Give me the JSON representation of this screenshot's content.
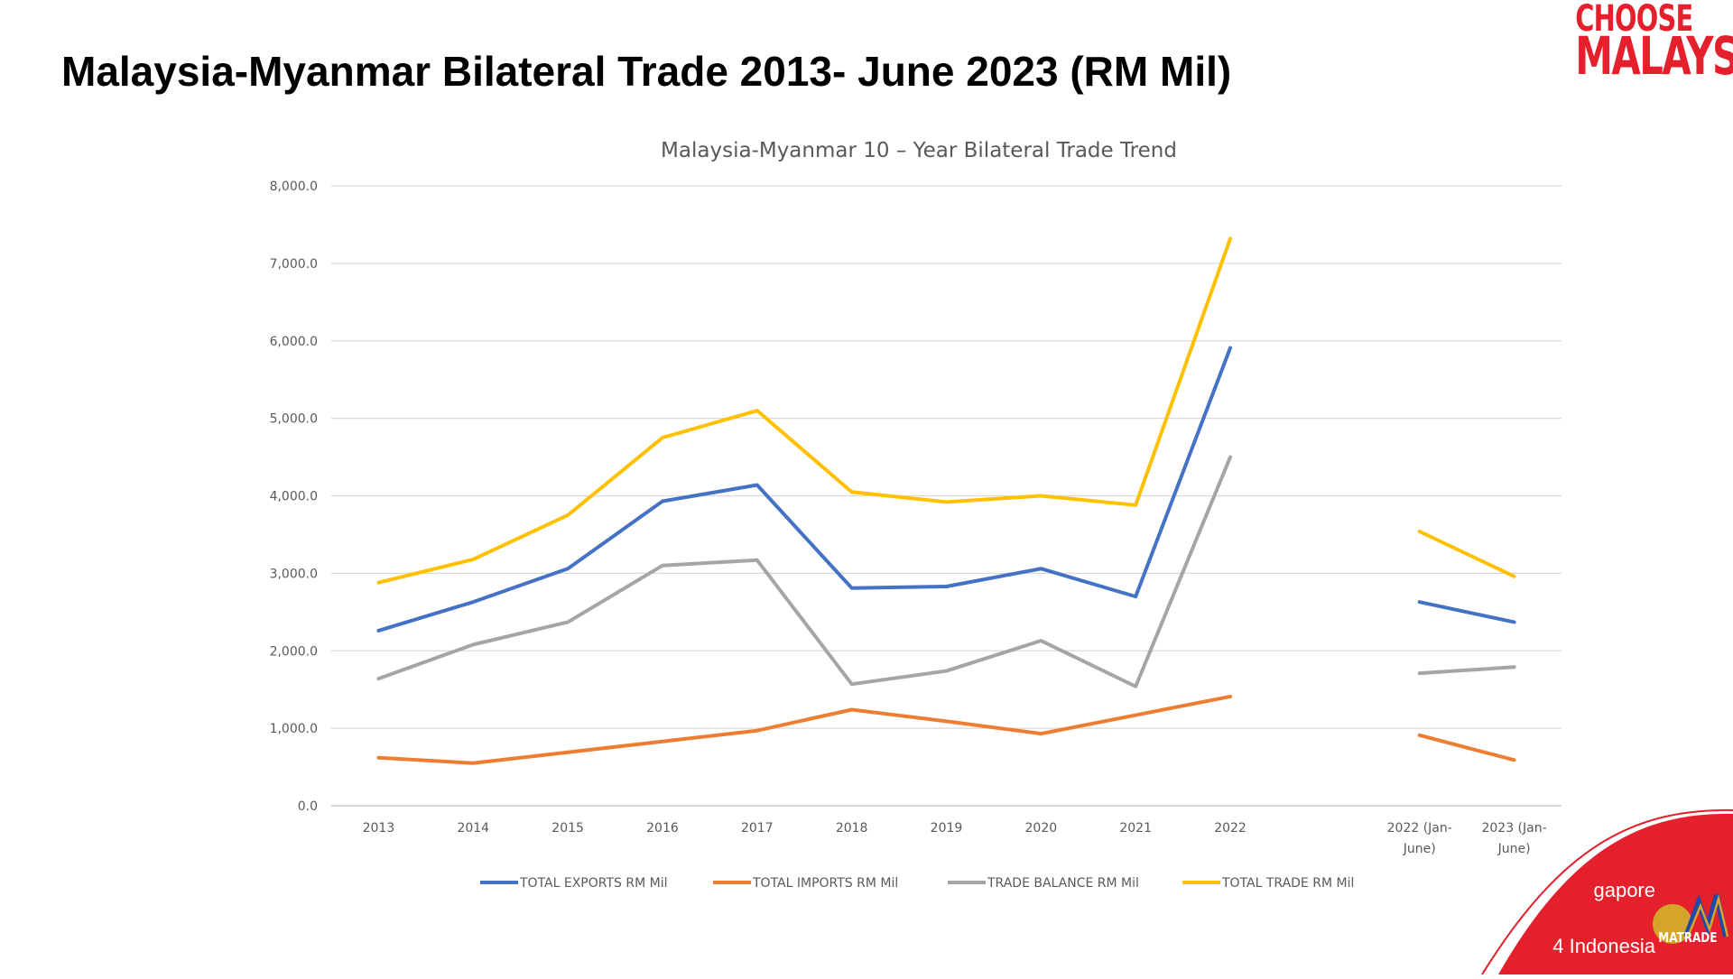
{
  "slide": {
    "title": "Malaysia-Myanmar Bilateral Trade 2013- June 2023 (RM Mil)",
    "logo_line1": "CHOOSE",
    "logo_line2": "MALAYSIA",
    "corner_text_1": "gapore",
    "corner_text_2": "4 Indonesia",
    "matrade": "MATRADE",
    "colors": {
      "brand_red": "#e3202c",
      "gold": "#d4a52a"
    }
  },
  "chart_data": {
    "type": "line",
    "title": "Malaysia-Myanmar 10 – Year Bilateral Trade Trend",
    "categories": [
      "2013",
      "2014",
      "2015",
      "2016",
      "2017",
      "2018",
      "2019",
      "2020",
      "2021",
      "2022",
      "",
      "2022 (Jan-June)",
      "2023 (Jan-June)"
    ],
    "category_lines": [
      [
        "2013"
      ],
      [
        "2014"
      ],
      [
        "2015"
      ],
      [
        "2016"
      ],
      [
        "2017"
      ],
      [
        "2018"
      ],
      [
        "2019"
      ],
      [
        "2020"
      ],
      [
        "2021"
      ],
      [
        "2022"
      ],
      [
        ""
      ],
      [
        "2022 (Jan-",
        "June)"
      ],
      [
        "2023 (Jan-",
        "June)"
      ]
    ],
    "ylim": [
      0,
      8000
    ],
    "yticks": [
      "0.0",
      "1,000.0",
      "2,000.0",
      "3,000.0",
      "4,000.0",
      "5,000.0",
      "6,000.0",
      "7,000.0",
      "8,000.0"
    ],
    "grid": true,
    "legend_position": "bottom",
    "series": [
      {
        "name": "TOTAL EXPORTS RM Mil",
        "color": "#4472c4",
        "values": [
          2260,
          2630,
          3060,
          3930,
          4140,
          2810,
          2830,
          3060,
          2700,
          5910,
          null,
          2630,
          2370
        ]
      },
      {
        "name": "TOTAL IMPORTS RM Mil",
        "color": "#ed7d31",
        "values": [
          620,
          550,
          690,
          830,
          970,
          1240,
          1090,
          930,
          1170,
          1410,
          null,
          910,
          590
        ]
      },
      {
        "name": "TRADE BALANCE RM Mil",
        "color": "#a5a5a5",
        "values": [
          1640,
          2080,
          2370,
          3100,
          3170,
          1570,
          1740,
          2130,
          1540,
          4500,
          null,
          1710,
          1790
        ]
      },
      {
        "name": "TOTAL TRADE RM Mil",
        "color": "#ffc000",
        "values": [
          2880,
          3180,
          3750,
          4750,
          5100,
          4050,
          3920,
          4000,
          3880,
          7320,
          null,
          3540,
          2960
        ]
      }
    ]
  }
}
